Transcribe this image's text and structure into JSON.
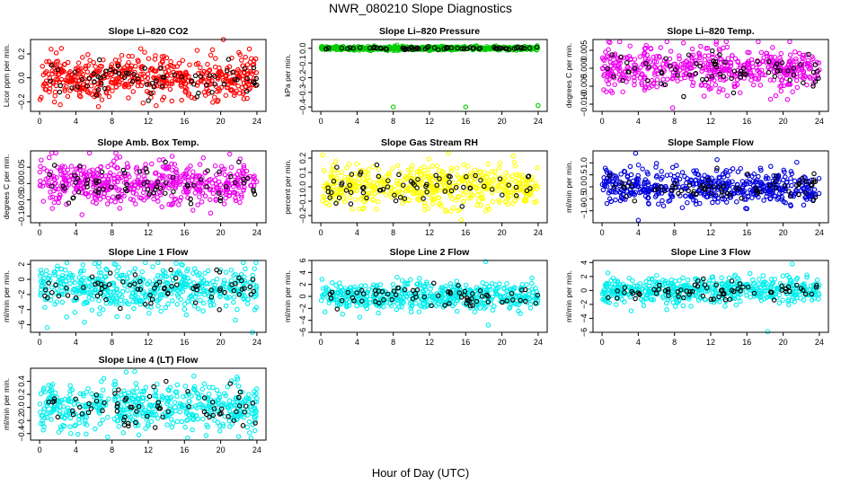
{
  "figure": {
    "title": "NWR_080210  Slope Diagnostics",
    "xlabel": "Hour of Day (UTC)"
  },
  "chart_data": [
    {
      "type": "scatter",
      "title": "Slope Li–820 CO2",
      "ylabel": "Licor ppm per min.",
      "color": "#ff0000",
      "ylim": [
        -0.28,
        0.32
      ],
      "yticks": [
        -0.2,
        0.0,
        0.2
      ],
      "ytick_labels": [
        "−0.2",
        "0.0",
        "0.2"
      ],
      "xlim": [
        -1,
        25
      ],
      "xticks": [
        0,
        4,
        8,
        12,
        16,
        20,
        24
      ],
      "center": 0.0,
      "spread": 0.09,
      "n": 520,
      "outliers": [
        [
          20.3,
          0.32
        ],
        [
          6.5,
          -0.24
        ]
      ]
    },
    {
      "type": "scatter",
      "title": "Slope Li–820 Pressure",
      "ylabel": "kPa per min.",
      "color": "#00cc00",
      "ylim": [
        -0.43,
        0.06
      ],
      "yticks": [
        -0.4,
        -0.3,
        -0.2,
        -0.1,
        0.0
      ],
      "ytick_labels": [
        "−0.4",
        "−0.3",
        "−0.2",
        "−0.1",
        "0.0"
      ],
      "xlim": [
        -1,
        25
      ],
      "xticks": [
        0,
        4,
        8,
        12,
        16,
        20,
        24
      ],
      "center": 0.0,
      "spread": 0.006,
      "n": 520,
      "outliers": [
        [
          8,
          -0.4
        ],
        [
          16,
          -0.4
        ],
        [
          24,
          -0.39
        ]
      ]
    },
    {
      "type": "scatter",
      "title": "Slope Li–820 Temp.",
      "ylabel": "degrees C per min.",
      "color": "#ee00ee",
      "ylim": [
        -0.012,
        0.008
      ],
      "yticks": [
        -0.01,
        -0.005,
        0.0,
        0.005
      ],
      "ytick_labels": [
        "−0.010",
        "−0.005",
        "0.000",
        "0.005"
      ],
      "xlim": [
        -1,
        25
      ],
      "xticks": [
        0,
        4,
        8,
        12,
        16,
        20,
        24
      ],
      "center": 0.0,
      "spread": 0.003,
      "n": 520,
      "outliers": [
        [
          7.8,
          -0.011
        ]
      ]
    },
    {
      "type": "scatter",
      "title": "Slope Amb. Box Temp.",
      "ylabel": "degrees C per min.",
      "color": "#ee00ee",
      "ylim": [
        -0.12,
        0.1
      ],
      "yticks": [
        -0.1,
        -0.05,
        0.0,
        0.05
      ],
      "ytick_labels": [
        "−0.10",
        "−0.05",
        "0.00",
        "0.05"
      ],
      "xlim": [
        -1,
        25
      ],
      "xticks": [
        0,
        4,
        8,
        12,
        16,
        20,
        24
      ],
      "center": 0.0,
      "spread": 0.035,
      "n": 520,
      "outliers": [
        [
          21,
          0.09
        ]
      ]
    },
    {
      "type": "scatter",
      "title": "Slope Gas Stream RH",
      "ylabel": "percent per min.",
      "color": "#ffff00",
      "ylim": [
        -0.25,
        0.25
      ],
      "yticks": [
        -0.2,
        -0.1,
        0.0,
        0.1,
        0.2
      ],
      "ytick_labels": [
        "−0.2",
        "−0.1",
        "0.0",
        "0.1",
        "0.2"
      ],
      "xlim": [
        -1,
        25
      ],
      "xticks": [
        0,
        4,
        8,
        12,
        16,
        20,
        24
      ],
      "center": 0.0,
      "spread": 0.07,
      "n": 520,
      "outliers": [
        [
          0.2,
          0.22
        ],
        [
          15.5,
          -0.23
        ]
      ]
    },
    {
      "type": "scatter",
      "title": "Slope Sample Flow",
      "ylabel": "ml/min per min.",
      "color": "#0000dd",
      "ylim": [
        -1.5,
        1.5
      ],
      "yticks": [
        -1.0,
        -0.5,
        0.0,
        0.5,
        1.0
      ],
      "ytick_labels": [
        "−1.0",
        "−0.5",
        "0.0",
        "0.5",
        "1.0"
      ],
      "xlim": [
        -1,
        25
      ],
      "xticks": [
        0,
        4,
        8,
        12,
        16,
        20,
        24
      ],
      "center": 0.0,
      "spread": 0.35,
      "n": 520,
      "outliers": [
        [
          4,
          -1.4
        ],
        [
          3.7,
          1.4
        ]
      ]
    },
    {
      "type": "scatter",
      "title": "Slope Line 1 Flow",
      "ylabel": "ml/min per min.",
      "color": "#00eeee",
      "ylim": [
        -7,
        2.5
      ],
      "yticks": [
        -6,
        -4,
        -2,
        0,
        2
      ],
      "ytick_labels": [
        "−6",
        "−4",
        "−2",
        "0",
        "2"
      ],
      "xlim": [
        -1,
        25
      ],
      "xticks": [
        0,
        4,
        8,
        12,
        16,
        20,
        24
      ],
      "center": -1.2,
      "spread": 1.5,
      "n": 520,
      "outliers": [
        [
          23.5,
          -7.0
        ]
      ]
    },
    {
      "type": "scatter",
      "title": "Slope Line 2 Flow",
      "ylabel": "ml/min per min.",
      "color": "#00eeee",
      "ylim": [
        -6,
        6
      ],
      "yticks": [
        -6,
        -4,
        -2,
        0,
        2,
        4,
        6
      ],
      "ytick_labels": [
        "−6",
        "−4",
        "−2",
        "0",
        "2",
        "4",
        "6"
      ],
      "xlim": [
        -1,
        25
      ],
      "xticks": [
        0,
        4,
        8,
        12,
        16,
        20,
        24
      ],
      "center": 0.0,
      "spread": 1.1,
      "n": 520,
      "outliers": [
        [
          18.2,
          5.8
        ],
        [
          18.5,
          -4.8
        ]
      ]
    },
    {
      "type": "scatter",
      "title": "Slope Line 3 Flow",
      "ylabel": "ml/min per min.",
      "color": "#00eeee",
      "ylim": [
        -6,
        4.3
      ],
      "yticks": [
        -6,
        -4,
        -2,
        0,
        2,
        4
      ],
      "ytick_labels": [
        "−6",
        "−4",
        "−2",
        "0",
        "2",
        "4"
      ],
      "xlim": [
        -1,
        25
      ],
      "xticks": [
        0,
        4,
        8,
        12,
        16,
        20,
        24
      ],
      "center": 0.0,
      "spread": 0.9,
      "n": 520,
      "outliers": [
        [
          18.3,
          -5.9
        ],
        [
          21,
          3.8
        ]
      ]
    },
    {
      "type": "scatter",
      "title": "Slope Line 4 (LT) Flow",
      "ylabel": "ml/min per min.",
      "color": "#00eeee",
      "ylim": [
        -0.5,
        0.6
      ],
      "yticks": [
        -0.4,
        -0.2,
        0.0,
        0.2,
        0.4
      ],
      "ytick_labels": [
        "−0.4",
        "−0.2",
        "0.0",
        "0.2",
        "0.4"
      ],
      "xlim": [
        -1,
        25
      ],
      "xticks": [
        0,
        4,
        8,
        12,
        16,
        20,
        24
      ],
      "center": 0.0,
      "spread": 0.18,
      "n": 520,
      "outliers": [
        [
          10.5,
          0.55
        ],
        [
          7.5,
          -0.45
        ]
      ]
    }
  ]
}
